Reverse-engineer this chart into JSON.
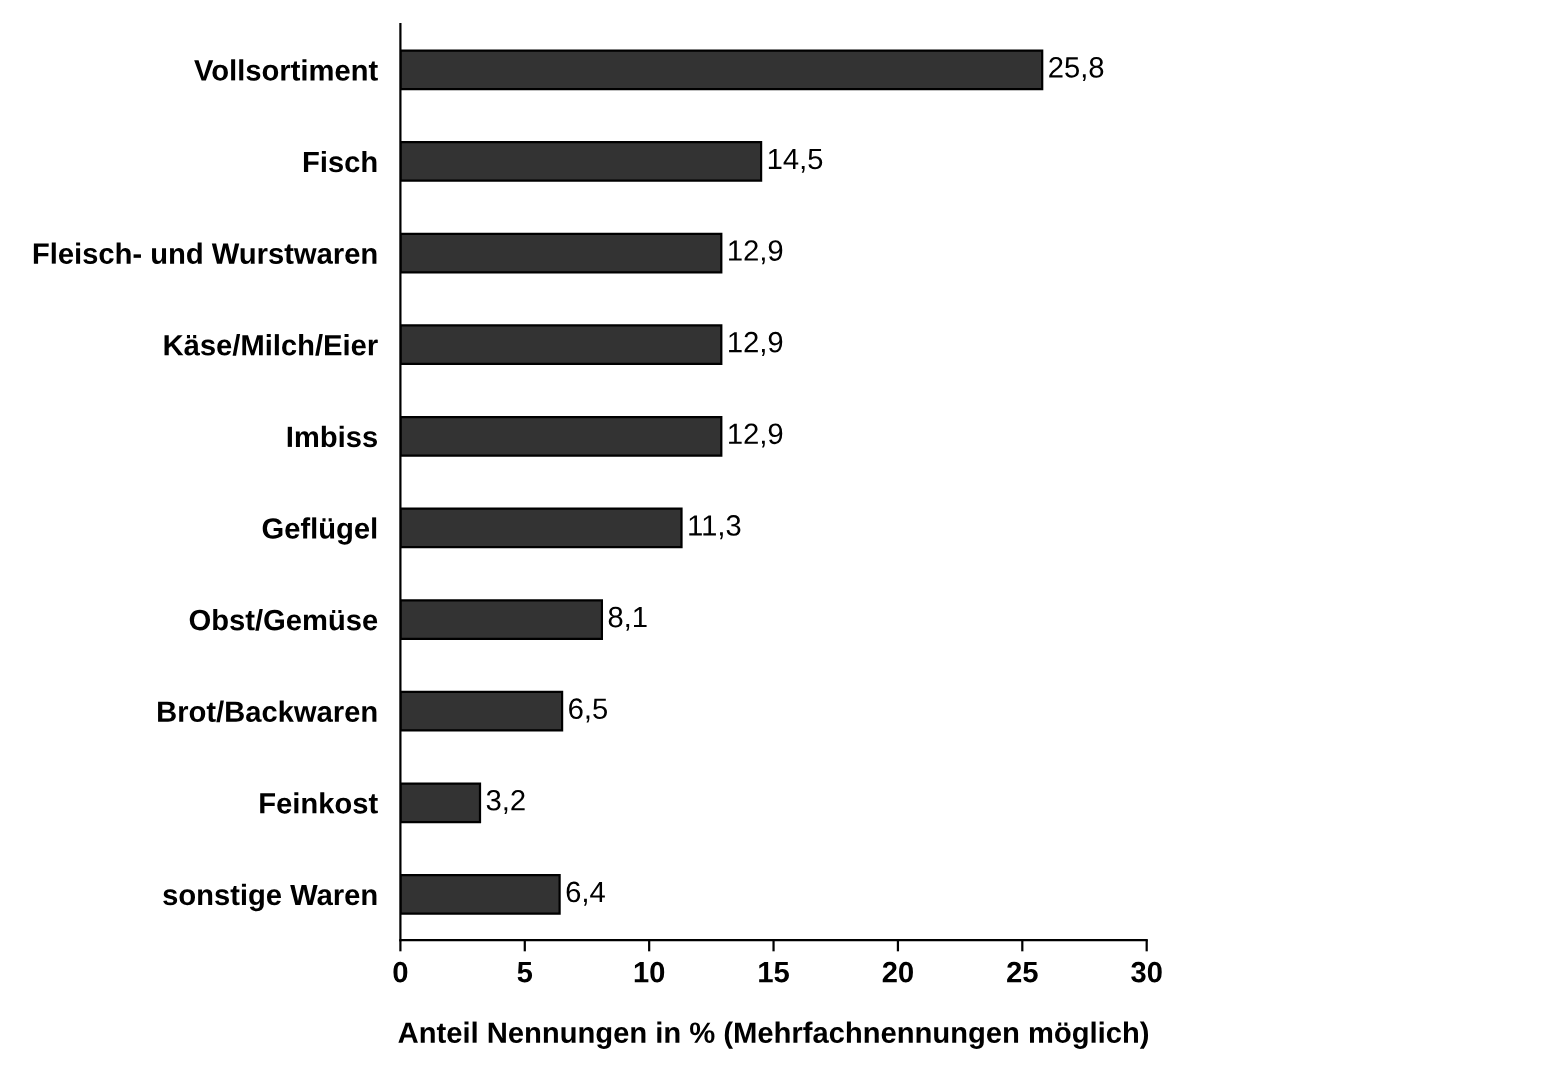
{
  "chart_data": {
    "type": "bar",
    "orientation": "horizontal",
    "xlabel": "Anteil Nennungen in % (Mehrfachnennungen möglich)",
    "categories": [
      "Vollsortiment",
      "Fisch",
      "Fleisch- und Wurstwaren",
      "Käse/Milch/Eier",
      "Imbiss",
      "Geflügel",
      "Obst/Gemüse",
      "Brot/Backwaren",
      "Feinkost",
      "sonstige Waren"
    ],
    "values": [
      25.8,
      14.5,
      12.9,
      12.9,
      12.9,
      11.3,
      8.1,
      6.5,
      3.2,
      6.4
    ],
    "value_labels": [
      "25,8",
      "14,5",
      "12,9",
      "12,9",
      "12,9",
      "11,3",
      "8,1",
      "6,5",
      "3,2",
      "6,4"
    ],
    "color": "#333333",
    "xlim": [
      0,
      30
    ],
    "xticks": [
      0,
      5,
      10,
      15,
      20,
      25,
      30
    ],
    "grid": false,
    "legend": false
  }
}
